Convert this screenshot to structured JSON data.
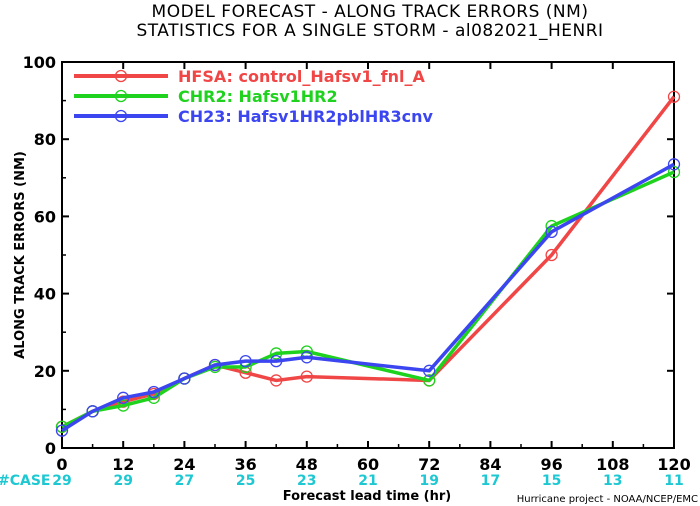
{
  "chart_data": {
    "type": "line",
    "title": "MODEL FORECAST - ALONG TRACK ERRORS (NM)",
    "subtitle": "STATISTICS FOR A SINGLE STORM - al082021_HENRI",
    "xlabel": "Forecast lead time (hr)",
    "ylabel": "ALONG TRACK ERRORS (NM)",
    "xlim": [
      0,
      120
    ],
    "ylim": [
      0,
      100
    ],
    "x_ticks": [
      0,
      12,
      24,
      36,
      48,
      60,
      72,
      84,
      96,
      108,
      120
    ],
    "y_ticks": [
      0,
      20,
      40,
      60,
      80,
      100
    ],
    "legend_position": "top-left",
    "grid": false,
    "series": [
      {
        "name": "HFSA: control_Hafsv1_fnl_A",
        "color": "#f04646",
        "points": [
          [
            0,
            5.5
          ],
          [
            6,
            9.5
          ],
          [
            12,
            12
          ],
          [
            18,
            14
          ],
          [
            24,
            18
          ],
          [
            30,
            21.5
          ],
          [
            36,
            19.5
          ],
          [
            42,
            17.5
          ],
          [
            48,
            18.5
          ],
          [
            72,
            17.5
          ],
          [
            96,
            50
          ],
          [
            120,
            91
          ]
        ]
      },
      {
        "name": "CHR2: Hafsv1HR2",
        "color": "#1ed21e",
        "points": [
          [
            0,
            5.5
          ],
          [
            6,
            9.5
          ],
          [
            12,
            11
          ],
          [
            18,
            13
          ],
          [
            24,
            18
          ],
          [
            30,
            21
          ],
          [
            36,
            21
          ],
          [
            42,
            24.5
          ],
          [
            48,
            25
          ],
          [
            72,
            17.5
          ],
          [
            96,
            57.5
          ],
          [
            120,
            71.5
          ]
        ]
      },
      {
        "name": "CH23: Hafsv1HR2pblHR3cnv",
        "color": "#3c46f0",
        "points": [
          [
            0,
            4.5
          ],
          [
            6,
            9.5
          ],
          [
            12,
            13
          ],
          [
            18,
            14.5
          ],
          [
            24,
            18
          ],
          [
            30,
            21.5
          ],
          [
            36,
            22.5
          ],
          [
            42,
            22.5
          ],
          [
            48,
            23.5
          ],
          [
            72,
            20
          ],
          [
            96,
            56
          ],
          [
            120,
            73.5
          ]
        ]
      }
    ],
    "case_label": "#CASE",
    "case_counts": [
      {
        "x": 0,
        "n": "29"
      },
      {
        "x": 12,
        "n": "29"
      },
      {
        "x": 24,
        "n": "27"
      },
      {
        "x": 36,
        "n": "25"
      },
      {
        "x": 48,
        "n": "23"
      },
      {
        "x": 60,
        "n": "21"
      },
      {
        "x": 72,
        "n": "19"
      },
      {
        "x": 84,
        "n": "17"
      },
      {
        "x": 96,
        "n": "15"
      },
      {
        "x": 108,
        "n": "13"
      },
      {
        "x": 120,
        "n": "11"
      }
    ],
    "credit": "Hurricane project - NOAA/NCEP/EMC"
  }
}
